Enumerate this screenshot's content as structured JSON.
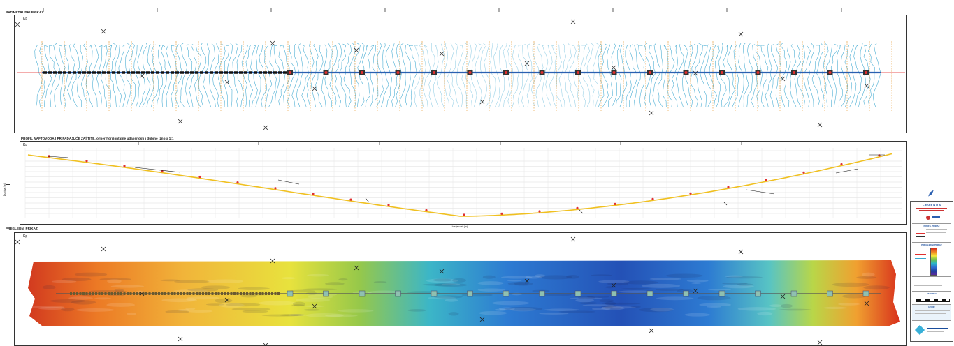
{
  "panels": {
    "bathy_title": "BATIMETRIJSKI PRIKAZ",
    "profile_title": "PROFIL NAFTOVODA I PRIPADAJUĆE ZAŠTITE, omjer horizontalne udaljenosti i dubine iznosi 1:1",
    "overview_title": "PREGLEDNI PRIKAZ",
    "kp_label": "Kp",
    "profile_xlabel": "Udaljenost (m)",
    "profile_ylabel": "Dubina (m)"
  },
  "legend": {
    "title": "L E G E N D A",
    "section_profile": "PROFIL PRIKAZ",
    "section_overview": "PREGLEDNI PRIKAZ",
    "section_scale": "MJERILO",
    "section_source": "IZVOR"
  },
  "colors": {
    "contour": "#3aa6cf",
    "pipeline": "#2a5fb0",
    "axis_red": "#e02020",
    "kp_orange": "#e8a040",
    "profile_line": "#f0c020",
    "markers": "#e03030"
  },
  "icons": {
    "north_arrow": "compass-icon",
    "logo": "company-logo-icon"
  }
}
